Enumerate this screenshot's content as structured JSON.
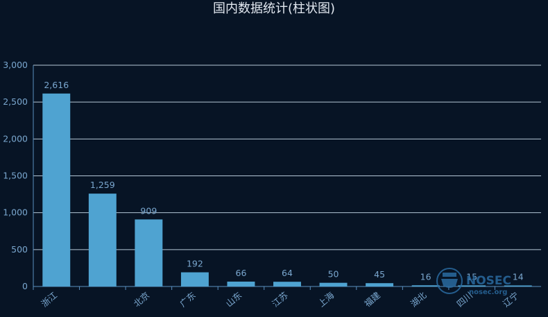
{
  "chart_data": {
    "type": "bar",
    "title": "国内数据统计(柱状图)",
    "categories": [
      "浙江",
      "",
      "北京",
      "广东",
      "山东",
      "江苏",
      "上海",
      "福建",
      "湖北",
      "四川",
      "辽宁"
    ],
    "values": [
      2616,
      1259,
      909,
      192,
      66,
      64,
      50,
      45,
      16,
      15,
      14
    ],
    "value_labels": [
      "2,616",
      "1,259",
      "909",
      "192",
      "66",
      "64",
      "50",
      "45",
      "16",
      "15",
      "14"
    ],
    "yticks": [
      "0",
      "500",
      "1,000",
      "1,500",
      "2,000",
      "2,500",
      "3,000"
    ],
    "ylim": [
      0,
      3000
    ],
    "grid": true,
    "bar_color": "#4fa3d1",
    "xlabel": "",
    "ylabel": ""
  },
  "watermark": {
    "text": "NOSEC",
    "subtext": "nosec.org",
    "icon": "hacker-mask-icon"
  }
}
